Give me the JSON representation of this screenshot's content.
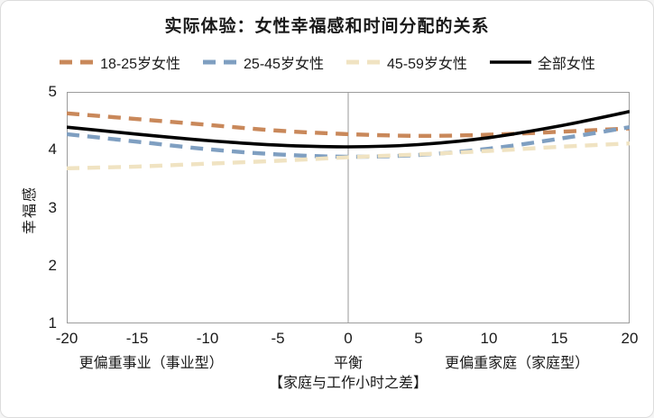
{
  "figure": {
    "title": "实际体验：女性幸福感和时间分配的关系"
  },
  "chart_data": {
    "type": "line",
    "title": "实际体验：女性幸福感和时间分配的关系",
    "x": [
      -20,
      -15,
      -10,
      -5,
      0,
      5,
      10,
      15,
      20
    ],
    "series": [
      {
        "name": "18-25岁女性",
        "color": "#C9885A",
        "style": "dashed",
        "values": [
          4.63,
          4.53,
          4.43,
          4.33,
          4.27,
          4.24,
          4.26,
          4.31,
          4.37
        ]
      },
      {
        "name": "25-45岁女性",
        "color": "#7F9FC1",
        "style": "dashed",
        "values": [
          4.27,
          4.14,
          4.01,
          3.92,
          3.88,
          3.91,
          4.02,
          4.19,
          4.39
        ]
      },
      {
        "name": "45-59岁女性",
        "color": "#F0E3C2",
        "style": "dashed",
        "values": [
          3.68,
          3.71,
          3.76,
          3.81,
          3.87,
          3.92,
          3.98,
          4.05,
          4.11
        ]
      },
      {
        "name": "全部女性",
        "color": "#000000",
        "style": "solid",
        "values": [
          4.39,
          4.27,
          4.16,
          4.08,
          4.05,
          4.09,
          4.21,
          4.41,
          4.66
        ]
      }
    ],
    "xlim": [
      -20,
      20
    ],
    "ylim": [
      1,
      5
    ],
    "x_ticks": [
      -20,
      -15,
      -10,
      -5,
      0,
      5,
      10,
      15,
      20
    ],
    "y_ticks": [
      5,
      4,
      3,
      2,
      1
    ],
    "ylabel": "幸福感",
    "x_region_labels": [
      {
        "text": "更偏重事业（事业型）",
        "x": -14
      },
      {
        "text": "平衡",
        "x": 0
      },
      {
        "text": "更偏重家庭（家庭型）",
        "x": 12
      }
    ],
    "xlabel": "【家庭与工作小时之差】",
    "gridline_at_x": 0,
    "legend_position": "top",
    "grid": "only vertical line at x=0"
  },
  "colors": {
    "background": "#FFFFFF",
    "plot_border": "#9C9C9C",
    "zero_line": "#ABABAB",
    "text": "#1A1A1A",
    "outer_border": "#DCDCDC"
  }
}
